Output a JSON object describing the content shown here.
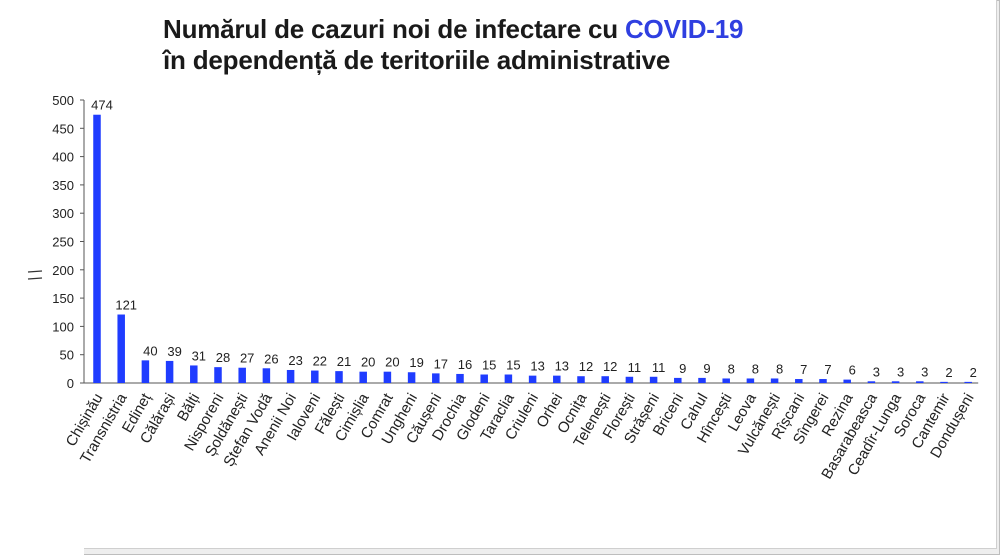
{
  "title": {
    "line1_prefix": "Numărul de cazuri noi de infectare cu ",
    "line1_highlight": "COVID-19",
    "line2": "în dependență de teritoriile administrative"
  },
  "colors": {
    "bar": "#1f3cff",
    "highlight": "#2f3fe0",
    "axis": "#555555"
  },
  "chart_data": {
    "type": "bar",
    "title": "Numărul de cazuri noi de infectare cu COVID-19 în dependență de teritoriile administrative",
    "categories": [
      "Chișinău",
      "Transnistria",
      "Edineț",
      "Călărași",
      "Bălți",
      "Nisporeni",
      "Șoldănești",
      "Ștefan Vodă",
      "Anenii Noi",
      "Ialoveni",
      "Fălești",
      "Cimișlia",
      "Comrat",
      "Ungheni",
      "Căușeni",
      "Drochia",
      "Glodeni",
      "Taraclia",
      "Criuleni",
      "Orhei",
      "Ocnița",
      "Telenești",
      "Florești",
      "Strășeni",
      "Briceni",
      "Cahul",
      "Hîncești",
      "Leova",
      "Vulcănești",
      "Rîșcani",
      "Sîngerei",
      "Rezina",
      "Basarabeasca",
      "Ceadîr-Lunga",
      "Soroca",
      "Cantemir",
      "Dondușeni"
    ],
    "values": [
      474,
      121,
      40,
      39,
      31,
      28,
      27,
      26,
      23,
      22,
      21,
      20,
      20,
      19,
      17,
      16,
      15,
      15,
      13,
      13,
      12,
      12,
      11,
      11,
      9,
      9,
      8,
      8,
      8,
      7,
      7,
      6,
      3,
      3,
      3,
      2,
      2
    ],
    "ylim": [
      0,
      500
    ],
    "yticks": [
      0,
      50,
      100,
      150,
      200,
      250,
      300,
      350,
      400,
      450,
      500
    ],
    "grid": false,
    "legend": "none"
  }
}
